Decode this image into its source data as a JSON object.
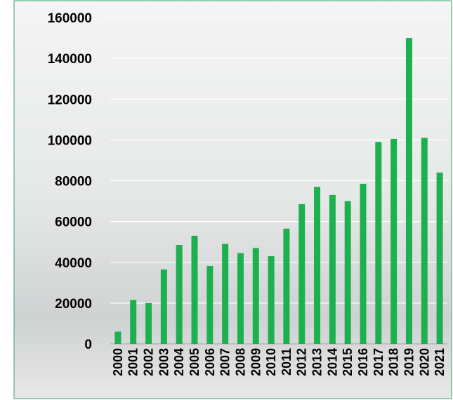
{
  "chart_data": {
    "type": "bar",
    "categories": [
      "2000",
      "2001",
      "2002",
      "2003",
      "2004",
      "2005",
      "2006",
      "2007",
      "2008",
      "2009",
      "2010",
      "2011",
      "2012",
      "2013",
      "2014",
      "2015",
      "2016",
      "2017",
      "2018",
      "2019",
      "2020",
      "2021"
    ],
    "values": [
      6000,
      21500,
      20000,
      36500,
      48500,
      53000,
      38200,
      49000,
      44500,
      47000,
      43000,
      56500,
      68500,
      77000,
      73000,
      70000,
      78500,
      99000,
      100500,
      150000,
      101000,
      84000
    ],
    "color": "#1db04f",
    "ylim": [
      0,
      160000
    ],
    "yticks": [
      0,
      20000,
      40000,
      60000,
      80000,
      100000,
      120000,
      140000,
      160000
    ],
    "grid": true
  }
}
